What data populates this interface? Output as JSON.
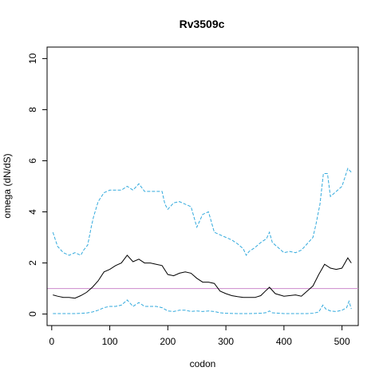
{
  "chart_data": {
    "type": "line",
    "title": "Rv3509c",
    "xlabel": "codon",
    "ylabel": "omega (dN/dS)",
    "xlim": [
      -8,
      528
    ],
    "ylim": [
      -0.45,
      10.45
    ],
    "x_ticks": [
      0,
      100,
      200,
      300,
      400,
      500
    ],
    "y_ticks": [
      0,
      2,
      4,
      6,
      8,
      10
    ],
    "grid": false,
    "reference_line": {
      "y": 1,
      "color": "#cc88cc"
    },
    "series": [
      {
        "style": "solid",
        "color": "#000000",
        "x": [
          2,
          10,
          20,
          30,
          40,
          50,
          60,
          70,
          80,
          90,
          100,
          110,
          120,
          130,
          140,
          150,
          160,
          170,
          180,
          190,
          200,
          210,
          220,
          230,
          240,
          250,
          260,
          270,
          280,
          290,
          300,
          310,
          320,
          330,
          340,
          350,
          360,
          368,
          375,
          385,
          400,
          420,
          430,
          440,
          450,
          460,
          470,
          480,
          490,
          500,
          510,
          516
        ],
        "values": [
          0.75,
          0.7,
          0.65,
          0.65,
          0.62,
          0.72,
          0.85,
          1.05,
          1.3,
          1.65,
          1.75,
          1.9,
          2.0,
          2.3,
          2.05,
          2.15,
          2.0,
          2.0,
          1.95,
          1.9,
          1.55,
          1.5,
          1.6,
          1.65,
          1.6,
          1.4,
          1.25,
          1.25,
          1.2,
          0.9,
          0.8,
          0.72,
          0.68,
          0.65,
          0.65,
          0.65,
          0.72,
          0.9,
          1.05,
          0.8,
          0.7,
          0.75,
          0.7,
          0.9,
          1.1,
          1.55,
          1.95,
          1.8,
          1.75,
          1.8,
          2.2,
          2.0
        ]
      },
      {
        "style": "dashed",
        "color": "#33aadd",
        "x": [
          2,
          10,
          20,
          30,
          40,
          50,
          55,
          62,
          68,
          72,
          80,
          90,
          100,
          110,
          120,
          130,
          140,
          150,
          160,
          170,
          180,
          190,
          195,
          200,
          210,
          220,
          230,
          240,
          250,
          260,
          270,
          280,
          290,
          300,
          310,
          320,
          330,
          335,
          340,
          350,
          360,
          370,
          375,
          380,
          390,
          400,
          410,
          420,
          430,
          440,
          450,
          455,
          462,
          468,
          475,
          480,
          490,
          500,
          510,
          516
        ],
        "values": [
          3.2,
          2.65,
          2.4,
          2.3,
          2.4,
          2.3,
          2.5,
          2.7,
          3.4,
          3.8,
          4.4,
          4.75,
          4.85,
          4.85,
          4.85,
          5.0,
          4.85,
          5.1,
          4.8,
          4.8,
          4.8,
          4.8,
          4.3,
          4.1,
          4.35,
          4.4,
          4.3,
          4.2,
          3.4,
          3.9,
          4.0,
          3.2,
          3.1,
          3.0,
          2.9,
          2.75,
          2.55,
          2.3,
          2.45,
          2.6,
          2.8,
          2.95,
          3.2,
          2.8,
          2.6,
          2.4,
          2.45,
          2.4,
          2.5,
          2.75,
          3.0,
          3.5,
          4.3,
          5.5,
          5.5,
          4.6,
          4.8,
          5.0,
          5.7,
          5.55
        ]
      },
      {
        "style": "dashed",
        "color": "#33aadd",
        "x": [
          2,
          20,
          40,
          60,
          70,
          80,
          90,
          100,
          110,
          120,
          130,
          140,
          150,
          160,
          170,
          180,
          190,
          200,
          210,
          220,
          230,
          240,
          250,
          260,
          270,
          280,
          290,
          300,
          320,
          340,
          360,
          370,
          375,
          380,
          400,
          420,
          440,
          450,
          460,
          467,
          472,
          480,
          490,
          500,
          508,
          512,
          516
        ],
        "values": [
          0.02,
          0.02,
          0.02,
          0.04,
          0.08,
          0.15,
          0.25,
          0.3,
          0.3,
          0.35,
          0.55,
          0.3,
          0.45,
          0.3,
          0.3,
          0.3,
          0.25,
          0.12,
          0.1,
          0.15,
          0.15,
          0.1,
          0.12,
          0.1,
          0.12,
          0.1,
          0.05,
          0.03,
          0.02,
          0.02,
          0.03,
          0.06,
          0.12,
          0.05,
          0.02,
          0.02,
          0.02,
          0.03,
          0.08,
          0.35,
          0.2,
          0.12,
          0.1,
          0.15,
          0.25,
          0.5,
          0.2
        ]
      }
    ]
  }
}
